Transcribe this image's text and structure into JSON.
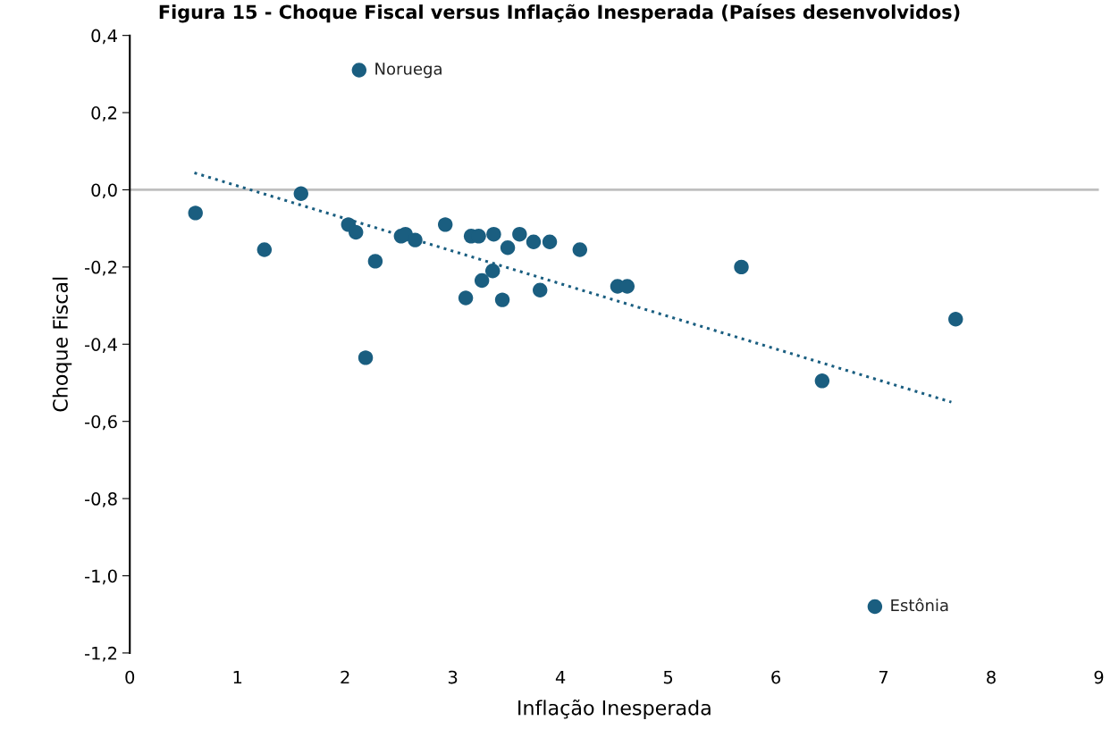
{
  "chart_data": {
    "type": "scatter",
    "title": "Figura 15 - Choque Fiscal versus Inflação Inesperada (Países desenvolvidos)",
    "xlabel": "Inflação Inesperada",
    "ylabel": "Choque Fiscal",
    "xlim": [
      0,
      9
    ],
    "xticks": [
      0,
      1,
      2,
      3,
      4,
      5,
      6,
      7,
      8,
      9
    ],
    "ylim": [
      -1.2,
      0.4
    ],
    "yticks": [
      {
        "value": -1.2,
        "label": "-1,2"
      },
      {
        "value": -1.0,
        "label": "-1,0"
      },
      {
        "value": -0.8,
        "label": "-0,8"
      },
      {
        "value": -0.6,
        "label": "-0,6"
      },
      {
        "value": -0.4,
        "label": "-0,4"
      },
      {
        "value": -0.2,
        "label": "-0,2"
      },
      {
        "value": 0.0,
        "label": "0,0"
      },
      {
        "value": 0.2,
        "label": "0,2"
      },
      {
        "value": 0.4,
        "label": "0,4"
      }
    ],
    "grid": false,
    "legend": false,
    "ref_lines": [
      {
        "axis": "y",
        "value": 0,
        "label": null,
        "color": "#bfbfbf"
      }
    ],
    "series": [
      {
        "color": "#1a5e80",
        "marker": "circle",
        "x": [
          0.61,
          1.25,
          1.59,
          2.03,
          2.1,
          2.13,
          2.19,
          2.28,
          2.52,
          2.56,
          2.65,
          2.93,
          3.12,
          3.17,
          3.24,
          3.27,
          3.37,
          3.38,
          3.46,
          3.51,
          3.62,
          3.75,
          3.81,
          3.9,
          4.18,
          4.53,
          4.62,
          5.68,
          6.43,
          6.92,
          7.67
        ],
        "values": [
          -0.06,
          -0.155,
          -0.01,
          -0.09,
          -0.11,
          0.31,
          -0.435,
          -0.185,
          -0.12,
          -0.115,
          -0.13,
          -0.09,
          -0.28,
          -0.12,
          -0.12,
          -0.235,
          -0.21,
          -0.115,
          -0.285,
          -0.15,
          -0.115,
          -0.135,
          -0.26,
          -0.135,
          -0.155,
          -0.25,
          -0.25,
          -0.2,
          -0.495,
          -1.08,
          -0.335
        ]
      },
      {
        "type": "line",
        "color": "#1a5e80",
        "line_style": "dotted",
        "x": [
          0.6,
          7.63
        ],
        "values": [
          0.044,
          -0.55
        ]
      }
    ],
    "annotations": [
      {
        "text": "Noruega",
        "x": 2.13,
        "y": 0.31
      },
      {
        "text": "Estônia",
        "x": 6.92,
        "y": -1.08
      }
    ]
  }
}
